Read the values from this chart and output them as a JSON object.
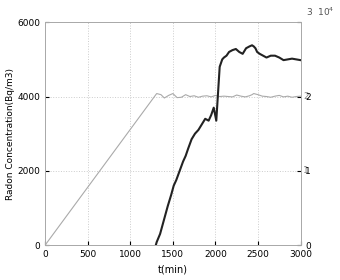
{
  "title": "",
  "xlabel": "t(min)",
  "ylabel": "Radon Concentration(Bq/m3)",
  "xlim": [
    0,
    3000
  ],
  "ylim": [
    0,
    6000
  ],
  "ylim_right": [
    0,
    30000
  ],
  "xticks": [
    0,
    500,
    1000,
    1500,
    2000,
    2500,
    3000
  ],
  "yticks_left": [
    0,
    2000,
    4000,
    6000
  ],
  "yticks_right": [
    0,
    10000,
    20000,
    30000
  ],
  "grid_color": "#cccccc",
  "bg_color": "#ffffff",
  "line1_color": "#aaaaaa",
  "line1_lw": 0.8,
  "line2_color": "#222222",
  "line2_lw": 1.5,
  "line1_t": [
    0,
    1300,
    1310,
    1360,
    1400,
    1450,
    1500,
    1550,
    1600,
    1650,
    1700,
    1750,
    1800,
    1850,
    1900,
    1950,
    2000,
    2050,
    2100,
    2150,
    2200,
    2250,
    2300,
    2350,
    2400,
    2430,
    2450,
    2500,
    2550,
    2600,
    2650,
    2700,
    2750,
    2800,
    2850,
    2900,
    2950,
    3000
  ],
  "line1_y": [
    0,
    4050,
    4080,
    4050,
    3960,
    4030,
    4080,
    3970,
    3980,
    4050,
    4000,
    4020,
    3980,
    4010,
    4020,
    3990,
    4030,
    4000,
    4010,
    4000,
    3990,
    4040,
    4010,
    3990,
    4020,
    4050,
    4080,
    4050,
    4010,
    4000,
    3980,
    4010,
    4030,
    3990,
    4010,
    3980,
    4000,
    4010
  ],
  "line2_t": [
    1300,
    1310,
    1350,
    1380,
    1410,
    1440,
    1480,
    1510,
    1540,
    1580,
    1620,
    1650,
    1680,
    1720,
    1760,
    1800,
    1840,
    1880,
    1920,
    1950,
    1980,
    2010,
    2050,
    2080,
    2100,
    2130,
    2160,
    2200,
    2240,
    2280,
    2320,
    2360,
    2400,
    2430,
    2450,
    2470,
    2490,
    2520,
    2560,
    2600,
    2650,
    2700,
    2750,
    2800,
    2850,
    2900,
    2950,
    3000
  ],
  "line2_y": [
    0,
    80,
    300,
    550,
    800,
    1050,
    1350,
    1600,
    1750,
    2000,
    2250,
    2400,
    2600,
    2850,
    3000,
    3100,
    3250,
    3400,
    3350,
    3500,
    3700,
    3350,
    4800,
    5000,
    5050,
    5100,
    5200,
    5250,
    5280,
    5200,
    5150,
    5300,
    5350,
    5380,
    5350,
    5300,
    5200,
    5150,
    5100,
    5050,
    5100,
    5100,
    5050,
    4980,
    5000,
    5020,
    5000,
    4980
  ]
}
